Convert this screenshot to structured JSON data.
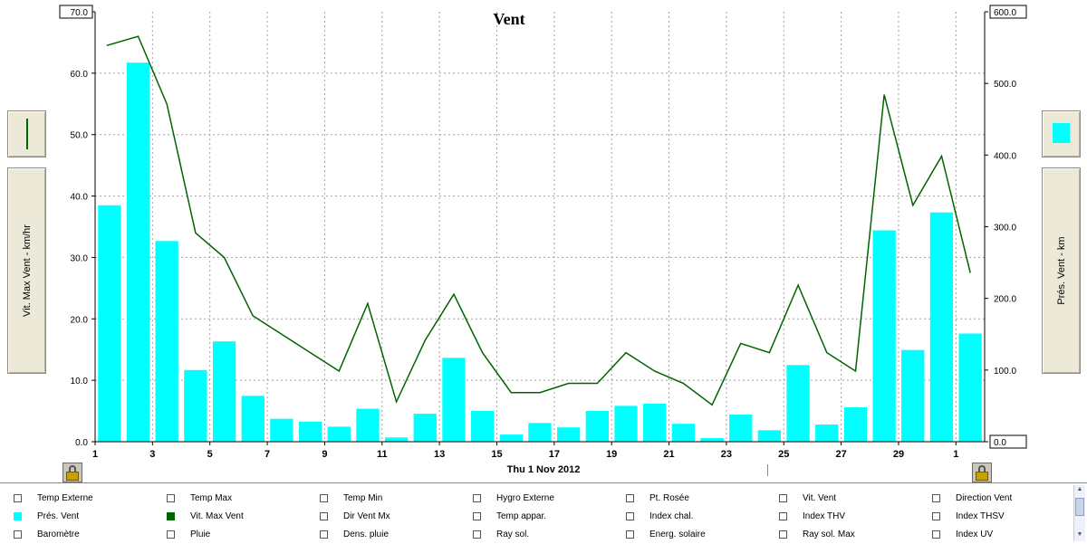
{
  "chart_data": {
    "type": "bar+line",
    "title": "Vent",
    "x_tick_labels": [
      "1",
      "3",
      "5",
      "7",
      "9",
      "11",
      "13",
      "15",
      "17",
      "19",
      "21",
      "23",
      "25",
      "27",
      "29",
      "1"
    ],
    "xlabel": "Thu 1 Nov 2012",
    "ylabel_left": "Vit. Max Vent - km/hr",
    "ylabel_right": "Prés. Vent - km",
    "ylim_left": [
      0,
      70
    ],
    "ylim_right": [
      0,
      600
    ],
    "yticks_left": [
      "0.0",
      "10.0",
      "20.0",
      "30.0",
      "40.0",
      "50.0",
      "60.0",
      "70.0"
    ],
    "yticks_right": [
      "0.0",
      "100.0",
      "200.0",
      "300.0",
      "400.0",
      "500.0",
      "600.0"
    ],
    "grid": true,
    "series": [
      {
        "name": "Prés. Vent",
        "axis": "right",
        "kind": "bar",
        "color": "#00ffff",
        "values": [
          330,
          529,
          280,
          100,
          140,
          64,
          32,
          28,
          21,
          46,
          6,
          39,
          117,
          43,
          10,
          26,
          20,
          43,
          50,
          53,
          25,
          5,
          38,
          16,
          107,
          24,
          48,
          295,
          128,
          320,
          151
        ]
      },
      {
        "name": "Vit. Max Vent",
        "axis": "left",
        "kind": "line",
        "color": "#006400",
        "values": [
          64.5,
          66,
          55,
          34,
          30,
          20.5,
          17.5,
          14.5,
          11.5,
          22.5,
          6.5,
          16.5,
          24,
          14.5,
          8,
          8,
          9.5,
          9.5,
          14.5,
          11.5,
          9.5,
          6,
          16,
          14.5,
          25.5,
          14.5,
          11.5,
          56.5,
          38.5,
          46.5,
          27.5
        ]
      }
    ]
  },
  "side_buttons": {
    "left_label": "Vit. Max Vent - km/hr",
    "right_label": "Prés. Vent - km"
  },
  "colors": {
    "bar": "#00ffff",
    "line": "#006400",
    "grid": "#a0a0a0"
  },
  "legend": {
    "rows": [
      [
        {
          "label": "Temp Externe",
          "swatch": null
        },
        {
          "label": "Temp Max",
          "swatch": null
        },
        {
          "label": "Temp Min",
          "swatch": null
        },
        {
          "label": "Hygro Externe",
          "swatch": null
        },
        {
          "label": "Pt. Rosée",
          "swatch": null
        },
        {
          "label": "Vit. Vent",
          "swatch": null
        },
        {
          "label": "Direction Vent",
          "swatch": null
        }
      ],
      [
        {
          "label": "Prés. Vent",
          "swatch": "#00ffff"
        },
        {
          "label": "Vit. Max Vent",
          "swatch": "#006400"
        },
        {
          "label": "Dir Vent Mx",
          "swatch": null
        },
        {
          "label": "Temp appar.",
          "swatch": null
        },
        {
          "label": "Index chal.",
          "swatch": null
        },
        {
          "label": "Index THV",
          "swatch": null
        },
        {
          "label": "Index THSV",
          "swatch": null
        }
      ],
      [
        {
          "label": "Baromètre",
          "swatch": null
        },
        {
          "label": "Pluie",
          "swatch": null
        },
        {
          "label": "Dens. pluie",
          "swatch": null
        },
        {
          "label": "Ray sol.",
          "swatch": null
        },
        {
          "label": "Energ. solaire",
          "swatch": null
        },
        {
          "label": "Ray sol. Max",
          "swatch": null
        },
        {
          "label": "Index UV",
          "swatch": null
        }
      ]
    ]
  }
}
